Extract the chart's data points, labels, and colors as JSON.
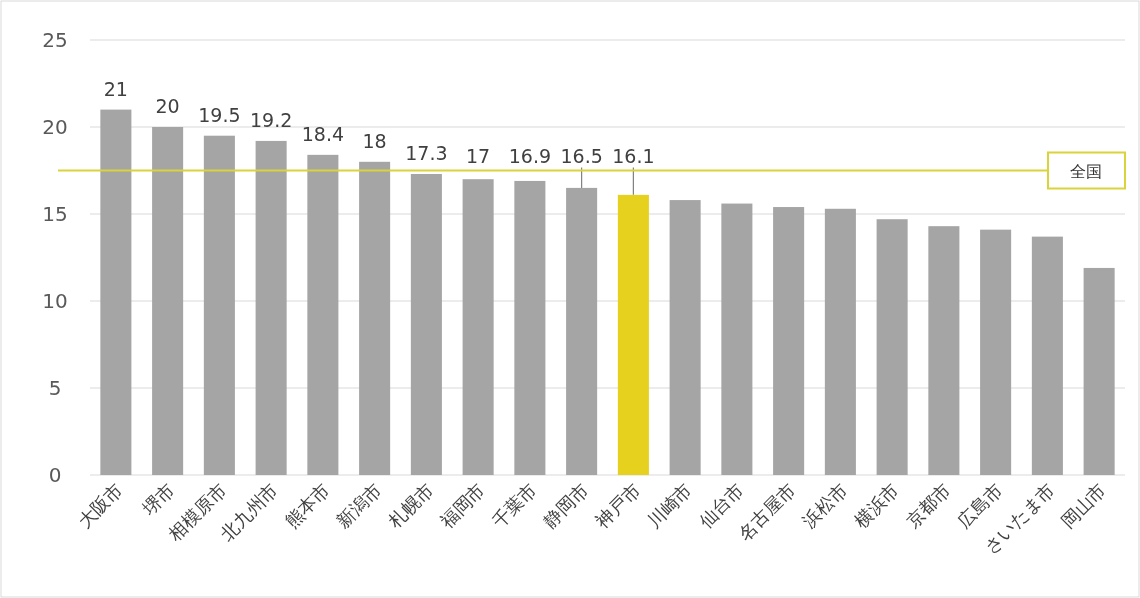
{
  "chart_data": {
    "type": "bar",
    "categories": [
      "大阪市",
      "堺市",
      "相模原市",
      "北九州市",
      "熊本市",
      "新潟市",
      "札幌市",
      "福岡市",
      "千葉市",
      "静岡市",
      "神戸市",
      "川崎市",
      "仙台市",
      "名古屋市",
      "浜松市",
      "横浜市",
      "京都市",
      "広島市",
      "さいたま市",
      "岡山市"
    ],
    "values": [
      21,
      20,
      19.5,
      19.2,
      18.4,
      18,
      17.3,
      17,
      16.9,
      16.5,
      16.1,
      15.8,
      15.6,
      15.4,
      15.3,
      14.7,
      14.3,
      14.1,
      13.7,
      11.9
    ],
    "value_labels": [
      "21",
      "20",
      "19.5",
      "19.2",
      "18.4",
      "18",
      "17.3",
      "17",
      "16.9",
      "16.5",
      "16.1",
      null,
      null,
      null,
      null,
      null,
      null,
      null,
      null,
      null
    ],
    "colors": [
      "#a5a5a5",
      "#a5a5a5",
      "#a5a5a5",
      "#a5a5a5",
      "#a5a5a5",
      "#a5a5a5",
      "#a5a5a5",
      "#a5a5a5",
      "#a5a5a5",
      "#a5a5a5",
      "#e6d11e",
      "#a5a5a5",
      "#a5a5a5",
      "#a5a5a5",
      "#a5a5a5",
      "#a5a5a5",
      "#a5a5a5",
      "#a5a5a5",
      "#a5a5a5",
      "#a5a5a5"
    ],
    "ylim": [
      0,
      25
    ],
    "yticks": [
      0,
      5,
      10,
      15,
      20,
      25
    ],
    "grid": "y",
    "ref_lines": [
      {
        "axis": "y",
        "value": 17.5,
        "label": "全国",
        "color": "#d9d43a"
      }
    ]
  }
}
